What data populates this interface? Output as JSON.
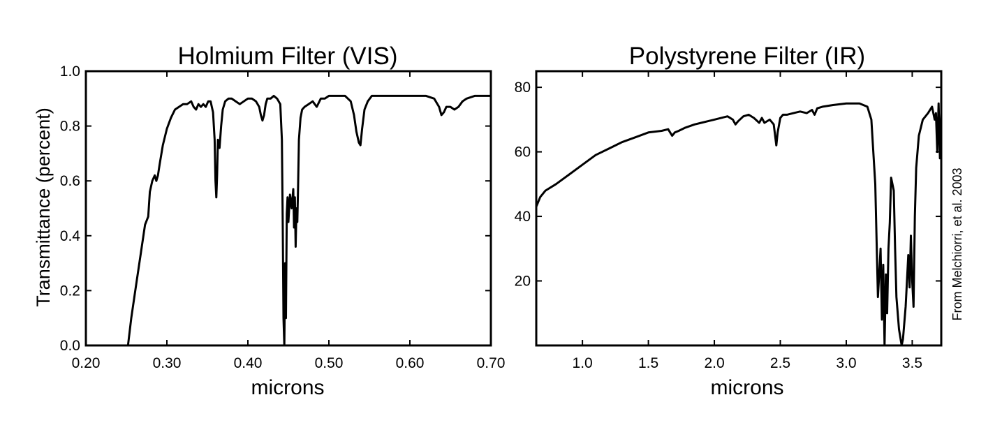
{
  "chart_data": [
    {
      "type": "line",
      "title": "Holmium Filter (VIS)",
      "xlabel": "microns",
      "ylabel": "Transmittance (percent)",
      "xlim": [
        0.2,
        0.7
      ],
      "ylim": [
        0.0,
        1.0
      ],
      "x_ticks": [
        "0.20",
        "0.30",
        "0.40",
        "0.50",
        "0.60",
        "0.70"
      ],
      "y_ticks": [
        "0.0",
        "0.2",
        "0.4",
        "0.6",
        "0.8",
        "1.0"
      ],
      "grid": false,
      "series": [
        {
          "x": [
            0.252,
            0.256,
            0.262,
            0.268,
            0.273,
            0.277,
            0.279,
            0.282,
            0.285,
            0.287,
            0.289,
            0.291,
            0.295,
            0.3,
            0.305,
            0.31,
            0.315,
            0.32,
            0.325,
            0.33,
            0.333,
            0.336,
            0.339,
            0.342,
            0.345,
            0.348,
            0.351,
            0.354,
            0.357,
            0.359,
            0.36,
            0.361,
            0.362,
            0.363,
            0.365,
            0.367,
            0.369,
            0.372,
            0.376,
            0.38,
            0.385,
            0.39,
            0.395,
            0.4,
            0.405,
            0.41,
            0.414,
            0.416,
            0.418,
            0.42,
            0.422,
            0.424,
            0.428,
            0.432,
            0.436,
            0.44,
            0.442,
            0.443,
            0.444,
            0.445,
            0.446,
            0.447,
            0.448,
            0.449,
            0.45,
            0.452,
            0.454,
            0.456,
            0.457,
            0.458,
            0.459,
            0.46,
            0.461,
            0.462,
            0.463,
            0.465,
            0.467,
            0.47,
            0.475,
            0.48,
            0.485,
            0.49,
            0.495,
            0.5,
            0.505,
            0.51,
            0.52,
            0.527,
            0.531,
            0.534,
            0.537,
            0.539,
            0.541,
            0.544,
            0.548,
            0.553,
            0.56,
            0.58,
            0.6,
            0.62,
            0.63,
            0.636,
            0.639,
            0.642,
            0.645,
            0.65,
            0.655,
            0.66,
            0.665,
            0.67,
            0.68,
            0.69,
            0.7
          ],
          "y": [
            0.0,
            0.1,
            0.22,
            0.34,
            0.44,
            0.47,
            0.56,
            0.6,
            0.62,
            0.6,
            0.62,
            0.66,
            0.73,
            0.79,
            0.83,
            0.86,
            0.87,
            0.88,
            0.88,
            0.89,
            0.87,
            0.86,
            0.88,
            0.87,
            0.88,
            0.87,
            0.89,
            0.89,
            0.85,
            0.75,
            0.6,
            0.54,
            0.62,
            0.75,
            0.72,
            0.8,
            0.86,
            0.89,
            0.9,
            0.9,
            0.89,
            0.88,
            0.89,
            0.9,
            0.9,
            0.89,
            0.87,
            0.84,
            0.82,
            0.84,
            0.88,
            0.9,
            0.9,
            0.91,
            0.9,
            0.88,
            0.75,
            0.45,
            0.1,
            0.0,
            0.3,
            0.1,
            0.48,
            0.54,
            0.45,
            0.55,
            0.5,
            0.57,
            0.43,
            0.54,
            0.36,
            0.5,
            0.45,
            0.58,
            0.75,
            0.83,
            0.86,
            0.87,
            0.88,
            0.89,
            0.87,
            0.9,
            0.9,
            0.91,
            0.91,
            0.91,
            0.91,
            0.89,
            0.84,
            0.78,
            0.74,
            0.73,
            0.79,
            0.86,
            0.89,
            0.91,
            0.91,
            0.91,
            0.91,
            0.91,
            0.9,
            0.87,
            0.84,
            0.85,
            0.87,
            0.87,
            0.86,
            0.87,
            0.89,
            0.9,
            0.91,
            0.91,
            0.91
          ]
        }
      ]
    },
    {
      "type": "line",
      "title": "Polystyrene Filter (IR)",
      "xlabel": "microns",
      "ylabel": "",
      "xlim": [
        0.65,
        3.72
      ],
      "ylim": [
        0,
        85
      ],
      "x_ticks": [
        "1.0",
        "1.5",
        "2.0",
        "2.5",
        "3.0",
        "3.5"
      ],
      "y_ticks": [
        "20",
        "40",
        "60",
        "80"
      ],
      "grid": false,
      "series": [
        {
          "x": [
            0.65,
            0.68,
            0.72,
            0.8,
            0.9,
            1.0,
            1.1,
            1.2,
            1.3,
            1.4,
            1.5,
            1.6,
            1.65,
            1.68,
            1.7,
            1.73,
            1.78,
            1.85,
            1.9,
            2.0,
            2.1,
            2.14,
            2.16,
            2.18,
            2.22,
            2.26,
            2.3,
            2.34,
            2.36,
            2.38,
            2.42,
            2.45,
            2.47,
            2.48,
            2.5,
            2.52,
            2.55,
            2.6,
            2.65,
            2.7,
            2.74,
            2.76,
            2.78,
            2.82,
            2.9,
            3.0,
            3.1,
            3.16,
            3.19,
            3.22,
            3.24,
            3.26,
            3.27,
            3.28,
            3.29,
            3.3,
            3.31,
            3.32,
            3.33,
            3.34,
            3.36,
            3.37,
            3.38,
            3.4,
            3.42,
            3.43,
            3.45,
            3.47,
            3.48,
            3.49,
            3.5,
            3.51,
            3.52,
            3.53,
            3.55,
            3.58,
            3.62,
            3.65,
            3.67,
            3.68,
            3.69,
            3.7,
            3.71,
            3.72
          ],
          "y": [
            43,
            46,
            48,
            50,
            53,
            56,
            59,
            61,
            63,
            64.5,
            66,
            66.5,
            67,
            65,
            66,
            66.5,
            67.5,
            68.5,
            69,
            70,
            71,
            70,
            68.5,
            69.5,
            71,
            71.5,
            70.5,
            69,
            70.5,
            69,
            70,
            68.5,
            62,
            66,
            70.5,
            71.5,
            71.5,
            72,
            72.5,
            72,
            73,
            71.5,
            73.5,
            74,
            74.5,
            75,
            75,
            74,
            70,
            50,
            15,
            30,
            8,
            25,
            0,
            22,
            10,
            30,
            38,
            52,
            48,
            30,
            15,
            5,
            0,
            2,
            12,
            28,
            18,
            34,
            20,
            12,
            40,
            55,
            65,
            70,
            72,
            74,
            70,
            72,
            60,
            75,
            58,
            72
          ]
        }
      ]
    }
  ],
  "credit": "From Melchiorri, et al. 2003"
}
